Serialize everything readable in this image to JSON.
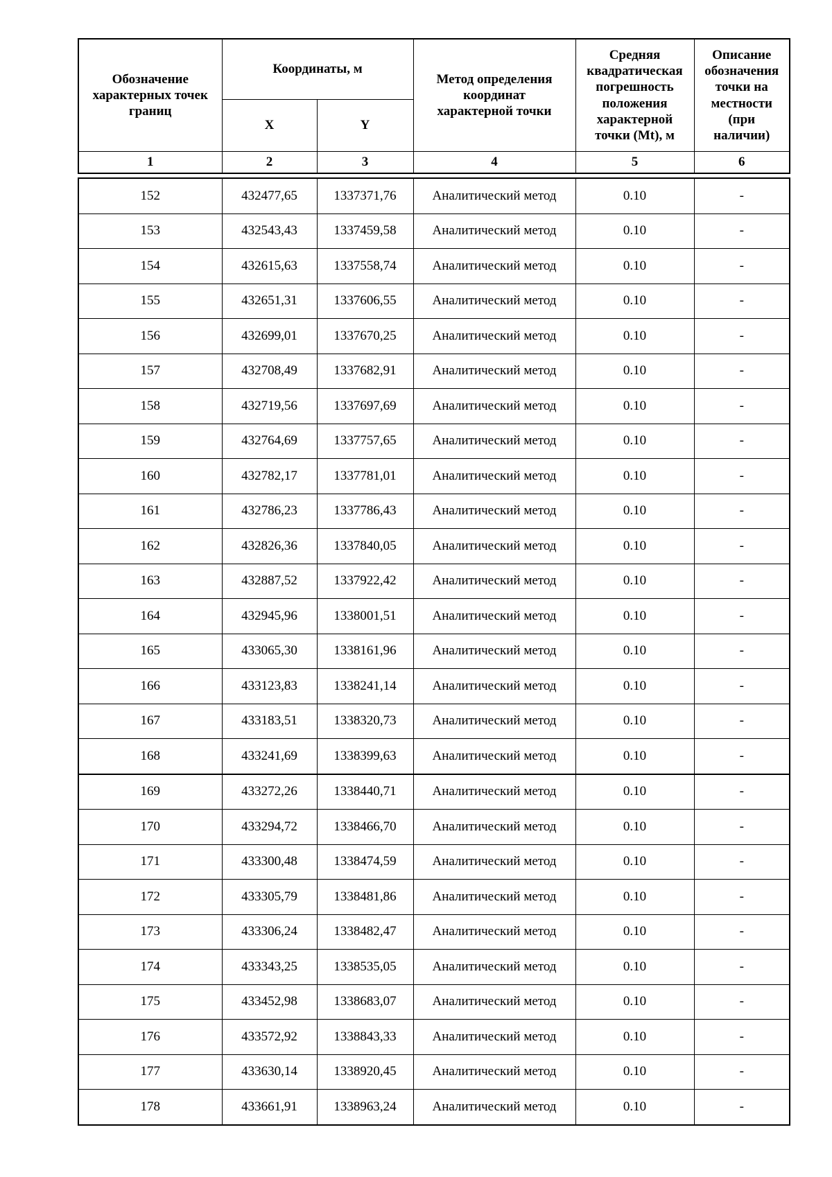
{
  "table": {
    "header": {
      "point": "Обозначение\nхарактерных точек\nграниц",
      "coordinates_group": "Координаты, м",
      "x": "X",
      "y": "Y",
      "method": "Метод определения\nкоординат\nхарактерной точки",
      "error": "Средняя\nквадратическая\nпогрешность\nположения\nхарактерной\nточки (Mt), м",
      "description": "Описание\nобозначения\nточки на\nместности\n(при\nналичии)"
    },
    "column_numbers": [
      "1",
      "2",
      "3",
      "4",
      "5",
      "6"
    ],
    "heavy_border_after_point": "168",
    "rows": [
      {
        "point": "152",
        "x": "432477,65",
        "y": "1337371,76",
        "method": "Аналитический метод",
        "error": "0.10",
        "description": "-"
      },
      {
        "point": "153",
        "x": "432543,43",
        "y": "1337459,58",
        "method": "Аналитический метод",
        "error": "0.10",
        "description": "-"
      },
      {
        "point": "154",
        "x": "432615,63",
        "y": "1337558,74",
        "method": "Аналитический метод",
        "error": "0.10",
        "description": "-"
      },
      {
        "point": "155",
        "x": "432651,31",
        "y": "1337606,55",
        "method": "Аналитический метод",
        "error": "0.10",
        "description": "-"
      },
      {
        "point": "156",
        "x": "432699,01",
        "y": "1337670,25",
        "method": "Аналитический метод",
        "error": "0.10",
        "description": "-"
      },
      {
        "point": "157",
        "x": "432708,49",
        "y": "1337682,91",
        "method": "Аналитический метод",
        "error": "0.10",
        "description": "-"
      },
      {
        "point": "158",
        "x": "432719,56",
        "y": "1337697,69",
        "method": "Аналитический метод",
        "error": "0.10",
        "description": "-"
      },
      {
        "point": "159",
        "x": "432764,69",
        "y": "1337757,65",
        "method": "Аналитический метод",
        "error": "0.10",
        "description": "-"
      },
      {
        "point": "160",
        "x": "432782,17",
        "y": "1337781,01",
        "method": "Аналитический метод",
        "error": "0.10",
        "description": "-"
      },
      {
        "point": "161",
        "x": "432786,23",
        "y": "1337786,43",
        "method": "Аналитический метод",
        "error": "0.10",
        "description": "-"
      },
      {
        "point": "162",
        "x": "432826,36",
        "y": "1337840,05",
        "method": "Аналитический метод",
        "error": "0.10",
        "description": "-"
      },
      {
        "point": "163",
        "x": "432887,52",
        "y": "1337922,42",
        "method": "Аналитический метод",
        "error": "0.10",
        "description": "-"
      },
      {
        "point": "164",
        "x": "432945,96",
        "y": "1338001,51",
        "method": "Аналитический метод",
        "error": "0.10",
        "description": "-"
      },
      {
        "point": "165",
        "x": "433065,30",
        "y": "1338161,96",
        "method": "Аналитический метод",
        "error": "0.10",
        "description": "-"
      },
      {
        "point": "166",
        "x": "433123,83",
        "y": "1338241,14",
        "method": "Аналитический метод",
        "error": "0.10",
        "description": "-"
      },
      {
        "point": "167",
        "x": "433183,51",
        "y": "1338320,73",
        "method": "Аналитический метод",
        "error": "0.10",
        "description": "-"
      },
      {
        "point": "168",
        "x": "433241,69",
        "y": "1338399,63",
        "method": "Аналитический метод",
        "error": "0.10",
        "description": "-"
      },
      {
        "point": "169",
        "x": "433272,26",
        "y": "1338440,71",
        "method": "Аналитический метод",
        "error": "0.10",
        "description": "-"
      },
      {
        "point": "170",
        "x": "433294,72",
        "y": "1338466,70",
        "method": "Аналитический метод",
        "error": "0.10",
        "description": "-"
      },
      {
        "point": "171",
        "x": "433300,48",
        "y": "1338474,59",
        "method": "Аналитический метод",
        "error": "0.10",
        "description": "-"
      },
      {
        "point": "172",
        "x": "433305,79",
        "y": "1338481,86",
        "method": "Аналитический метод",
        "error": "0.10",
        "description": "-"
      },
      {
        "point": "173",
        "x": "433306,24",
        "y": "1338482,47",
        "method": "Аналитический метод",
        "error": "0.10",
        "description": "-"
      },
      {
        "point": "174",
        "x": "433343,25",
        "y": "1338535,05",
        "method": "Аналитический метод",
        "error": "0.10",
        "description": "-"
      },
      {
        "point": "175",
        "x": "433452,98",
        "y": "1338683,07",
        "method": "Аналитический метод",
        "error": "0.10",
        "description": "-"
      },
      {
        "point": "176",
        "x": "433572,92",
        "y": "1338843,33",
        "method": "Аналитический метод",
        "error": "0.10",
        "description": "-"
      },
      {
        "point": "177",
        "x": "433630,14",
        "y": "1338920,45",
        "method": "Аналитический метод",
        "error": "0.10",
        "description": "-"
      },
      {
        "point": "178",
        "x": "433661,91",
        "y": "1338963,24",
        "method": "Аналитический метод",
        "error": "0.10",
        "description": "-"
      }
    ]
  }
}
